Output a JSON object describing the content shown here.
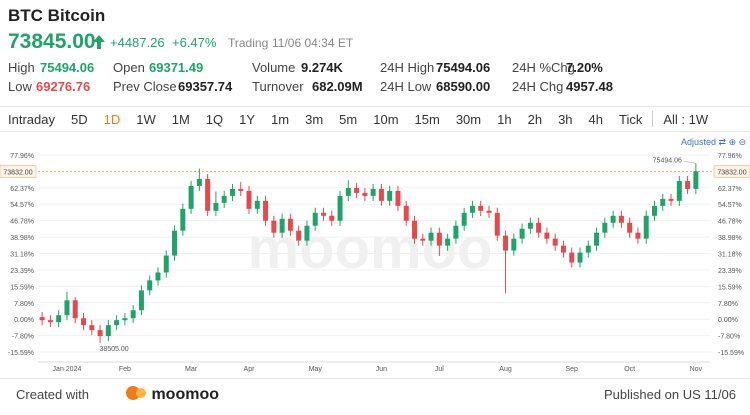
{
  "header": {
    "title": "BTC Bitcoin",
    "price": "73845.00",
    "change": "+4487.26",
    "change_pct": "+6.47%",
    "status": "Trading",
    "time": "11/06 04:34 ET"
  },
  "stats": [
    {
      "label": "High",
      "value": "75494.06",
      "color": "#1fa36a"
    },
    {
      "label": "Low",
      "value": "69276.76",
      "color": "#e5484d"
    },
    {
      "label": "Open",
      "value": "69371.49",
      "color": "#1fa36a"
    },
    {
      "label": "Prev Close",
      "value": "69357.74",
      "color": "#222222"
    },
    {
      "label": "Volume",
      "value": "9.274K",
      "color": "#222222"
    },
    {
      "label": "Turnover",
      "value": "682.09M",
      "color": "#222222"
    },
    {
      "label": "24H High",
      "value": "75494.06",
      "color": "#222222"
    },
    {
      "label": "24H Low",
      "value": "68590.00",
      "color": "#222222"
    },
    {
      "label": "24H %Chg",
      "value": "7.20%",
      "color": "#222222"
    },
    {
      "label": "24H Chg",
      "value": "4957.48",
      "color": "#222222"
    }
  ],
  "tabs": [
    "Intraday",
    "5D",
    "1D",
    "1W",
    "1M",
    "1Q",
    "1Y",
    "1m",
    "3m",
    "5m",
    "10m",
    "15m",
    "30m",
    "1h",
    "2h",
    "3h",
    "4h",
    "Tick"
  ],
  "active_tab": 2,
  "range_tab": "All : 1W",
  "adjusted": "Adjusted",
  "footer": {
    "created": "Created with",
    "brand": "moomoo",
    "published": "Published on US 11/06"
  },
  "chart_data": {
    "type": "candlestick",
    "watermark": "moomoo",
    "up_color": "#1fa36a",
    "down_color": "#e5484d",
    "categories": [
      null,
      null,
      null,
      "Jan 2024",
      null,
      null,
      null,
      null,
      null,
      null,
      "Feb",
      null,
      null,
      null,
      null,
      null,
      null,
      null,
      "Mar",
      null,
      null,
      null,
      null,
      null,
      null,
      "Apr",
      null,
      null,
      null,
      null,
      null,
      null,
      null,
      "May",
      null,
      null,
      null,
      null,
      null,
      null,
      null,
      "Jun",
      null,
      null,
      null,
      null,
      null,
      null,
      "Jul",
      null,
      null,
      null,
      null,
      null,
      null,
      null,
      "Aug",
      null,
      null,
      null,
      null,
      null,
      null,
      null,
      "Sep",
      null,
      null,
      null,
      null,
      null,
      null,
      "Oct",
      null,
      null,
      null,
      null,
      null,
      null,
      null,
      "Nov"
    ],
    "open": [
      1.0,
      -0.47,
      -1.42,
      1.89,
      8.97,
      0.47,
      -2.83,
      -5.19,
      -8.02,
      -2.83,
      -0.47,
      0.47,
      4.25,
      13.69,
      18.41,
      22.18,
      30.21,
      42.01,
      52.39,
      63.25,
      66.55,
      51.45,
      55.22,
      58.53,
      61.83,
      60.89,
      52.39,
      56.17,
      46.73,
      41.06,
      47.67,
      42.01,
      37.29,
      44.37,
      50.5,
      49.09,
      46.73,
      58.53,
      62.3,
      59.94,
      58.53,
      61.83,
      56.17,
      60.89,
      53.81,
      46.73,
      38.23,
      37.29,
      41.06,
      34.93,
      38.23,
      44.37,
      50.5,
      53.81,
      51.45,
      50.5,
      39.65,
      32.57,
      38.23,
      42.95,
      45.78,
      41.06,
      38.23,
      34.93,
      31.62,
      26.9,
      31.62,
      34.93,
      41.06,
      45.78,
      49.09,
      45.78,
      41.06,
      38.23,
      49.09,
      53.81,
      57.11,
      56.17,
      65.61,
      61.83
    ],
    "high": [
      3.4,
      1.9,
      4.3,
      13.0,
      10.5,
      2.9,
      -0.4,
      -2.8,
      -0.4,
      1.9,
      2.9,
      6.7,
      16.1,
      20.8,
      24.6,
      32.6,
      44.4,
      54.8,
      65.7,
      71.5,
      69.0,
      60.6,
      61.0,
      64.2,
      65.1,
      63.3,
      58.6,
      58.6,
      49.1,
      50.1,
      50.1,
      44.4,
      46.8,
      52.9,
      52.9,
      51.5,
      60.9,
      66.0,
      64.7,
      62.3,
      64.2,
      64.2,
      63.3,
      63.3,
      56.2,
      49.1,
      40.6,
      43.5,
      43.5,
      40.6,
      46.8,
      52.9,
      56.2,
      56.2,
      53.9,
      52.9,
      42.1,
      40.6,
      45.4,
      48.2,
      48.2,
      43.5,
      40.6,
      37.3,
      34.0,
      34.0,
      37.3,
      43.5,
      48.2,
      51.5,
      51.5,
      48.2,
      43.5,
      51.5,
      56.2,
      59.5,
      59.5,
      68.0,
      68.0,
      74.0
    ],
    "low": [
      -2.9,
      -3.8,
      -3.8,
      -0.5,
      -1.9,
      -5.2,
      -7.6,
      -11.25,
      -10.4,
      -5.2,
      -2.9,
      -1.9,
      1.9,
      11.3,
      16.0,
      19.8,
      27.8,
      39.6,
      50.0,
      60.9,
      49.0,
      49.0,
      52.8,
      56.1,
      58.5,
      50.0,
      50.0,
      44.3,
      38.7,
      38.7,
      39.6,
      34.9,
      34.9,
      42.0,
      46.7,
      44.3,
      44.3,
      56.1,
      57.5,
      56.1,
      56.1,
      53.8,
      53.8,
      51.4,
      44.3,
      35.8,
      34.9,
      34.9,
      30.0,
      32.5,
      35.8,
      42.0,
      48.1,
      49.0,
      48.1,
      37.2,
      12.3,
      30.2,
      35.8,
      40.5,
      38.7,
      35.8,
      32.5,
      29.2,
      24.5,
      24.5,
      29.2,
      32.5,
      38.7,
      43.4,
      43.4,
      38.7,
      35.8,
      35.8,
      46.7,
      51.4,
      53.8,
      53.8,
      59.4,
      59.4
    ],
    "close": [
      -0.47,
      -1.42,
      1.89,
      8.97,
      0.47,
      -2.83,
      -5.19,
      -8.02,
      -2.83,
      -0.47,
      0.47,
      4.25,
      13.69,
      18.41,
      22.18,
      30.21,
      42.01,
      52.39,
      63.25,
      66.55,
      51.45,
      55.22,
      58.53,
      61.83,
      60.89,
      52.39,
      56.17,
      46.73,
      41.06,
      47.67,
      42.01,
      37.29,
      44.37,
      50.5,
      49.09,
      46.73,
      58.53,
      62.3,
      59.94,
      58.53,
      61.83,
      56.17,
      60.89,
      53.81,
      46.73,
      38.23,
      37.29,
      41.06,
      34.93,
      38.23,
      44.37,
      50.5,
      53.81,
      51.45,
      50.5,
      39.65,
      32.57,
      38.23,
      42.95,
      45.78,
      41.06,
      38.23,
      34.93,
      31.62,
      26.9,
      31.62,
      34.93,
      41.06,
      45.78,
      49.09,
      45.78,
      41.06,
      38.23,
      49.09,
      53.81,
      57.11,
      56.17,
      65.61,
      61.83,
      70.2
    ],
    "high_label": "75494.06",
    "low_label": "38505.00",
    "price_line": {
      "value": 70.17,
      "label": "73832.00",
      "color": "#f5a25d"
    },
    "ylim": [
      -17.95,
      80.32
    ],
    "yticks": [
      {
        "value": 77.96,
        "label": "77.96%"
      },
      {
        "value": 62.37,
        "label": "62.37%"
      },
      {
        "value": 54.57,
        "label": "54.57%"
      },
      {
        "value": 46.78,
        "label": "46.78%"
      },
      {
        "value": 38.98,
        "label": "38.98%"
      },
      {
        "value": 31.18,
        "label": "31.18%"
      },
      {
        "value": 23.39,
        "label": "23.39%"
      },
      {
        "value": 15.59,
        "label": "15.59%"
      },
      {
        "value": 7.8,
        "label": "7.80%"
      },
      {
        "value": 0,
        "label": "0.00%"
      },
      {
        "value": -7.8,
        "label": "-7.80%"
      },
      {
        "value": -15.59,
        "label": "-15.59%"
      }
    ],
    "grid": true
  }
}
